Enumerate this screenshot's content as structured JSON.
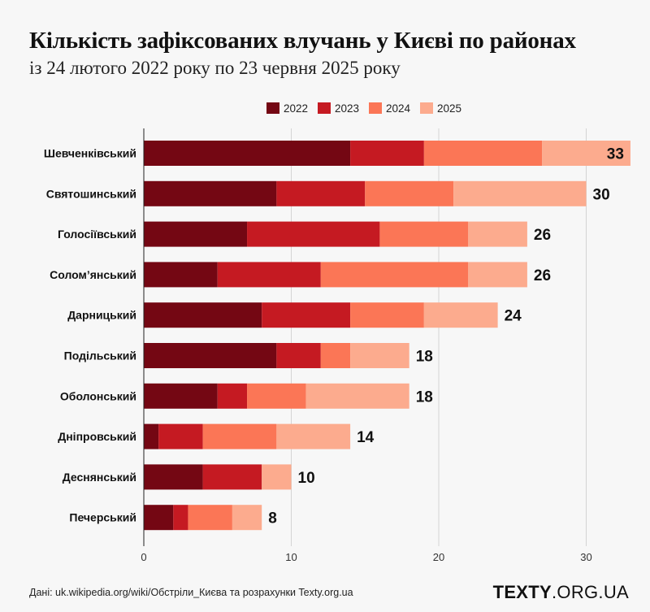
{
  "title": "Кількість зафіксованих влучань у Києві по районах",
  "subtitle": "із 24 лютого 2022 року по 23 червня 2025 року",
  "footer": {
    "source": "Дані: uk.wikipedia.org/wiki/Обстріли_Києва та розрахунки Texty.org.ua",
    "brand_bold": "TEXTY",
    "brand_rest": ".ORG.UA"
  },
  "chart_data": {
    "type": "bar",
    "orientation": "horizontal",
    "stacked": true,
    "categories": [
      "Шевченківський",
      "Святошинський",
      "Голосіївський",
      "Солом’янський",
      "Дарницький",
      "Подільський",
      "Оболонський",
      "Дніпровський",
      "Деснянський",
      "Печерський"
    ],
    "series": [
      {
        "name": "2022",
        "color": "#740713",
        "values": [
          14,
          9,
          7,
          5,
          8,
          9,
          5,
          1,
          4,
          2
        ]
      },
      {
        "name": "2023",
        "color": "#c51a22",
        "values": [
          5,
          6,
          9,
          7,
          6,
          3,
          2,
          3,
          4,
          1
        ]
      },
      {
        "name": "2024",
        "color": "#fb7656",
        "values": [
          8,
          6,
          6,
          10,
          5,
          2,
          4,
          5,
          0,
          3
        ]
      },
      {
        "name": "2025",
        "color": "#fcab8e",
        "values": [
          6,
          9,
          4,
          4,
          5,
          4,
          7,
          5,
          2,
          2
        ]
      }
    ],
    "totals": [
      33,
      30,
      26,
      26,
      24,
      18,
      18,
      14,
      10,
      8
    ],
    "xticks": [
      0,
      10,
      20,
      30
    ],
    "xlim": [
      0,
      33
    ],
    "legend_position": "top",
    "grid": "vertical"
  }
}
